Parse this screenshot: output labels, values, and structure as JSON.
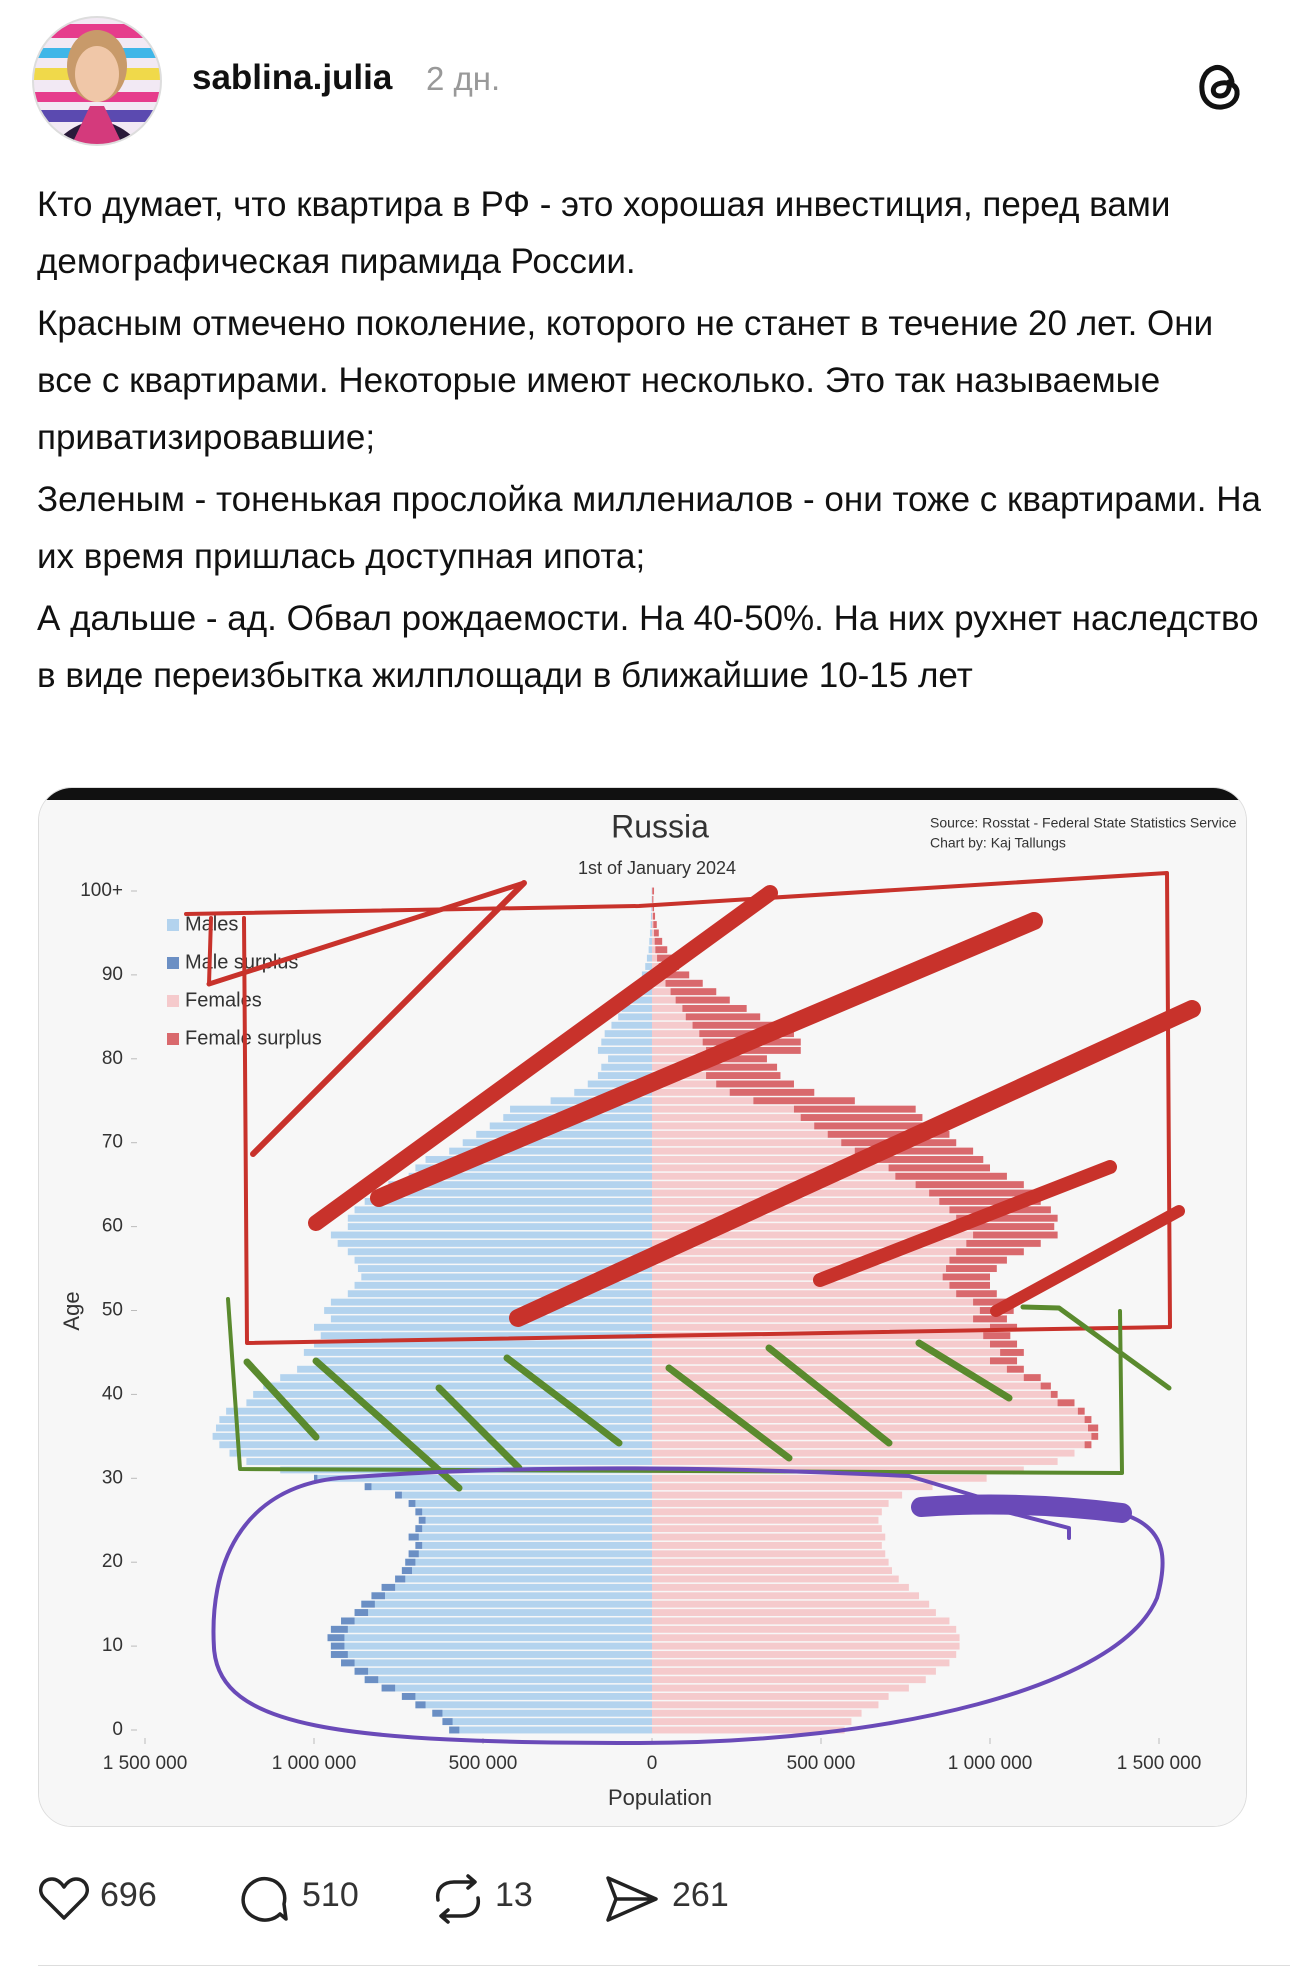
{
  "post": {
    "author": "sablina.julia",
    "time": "2 дн.",
    "paragraphs": [
      "Кто думает, что квартира в РФ - это хорошая инвестиция, перед вами демографическая пирамида России.",
      "Красным отмечено поколение, которого не станет в течение 20 лет. Они все с квартирами. Некоторые имеют несколько. Это так называемые приватизировавшие;",
      "Зеленым - тоненькая прослойка миллениалов - они тоже с квартирами. На их время пришлась доступная ипота;",
      "А дальше - ад. Обвал рождаемости. На 40-50%. На них рухнет наследство в виде переизбытка жилплощади в ближайшие 10-15 лет"
    ],
    "stats": {
      "likes": 696,
      "replies": 510,
      "reposts": 13,
      "shares": 261
    }
  },
  "chart_data": {
    "type": "population-pyramid",
    "title": "Russia",
    "subtitle": "1st of January 2024",
    "source": "Source: Rosstat - Federal State Statistics Service",
    "credit": "Chart by: Kaj Tallungs",
    "x_label": "Population",
    "y_label": "Age",
    "y": [
      0,
      1,
      2,
      3,
      4,
      5,
      6,
      7,
      8,
      9,
      10,
      11,
      12,
      13,
      14,
      15,
      16,
      17,
      18,
      19,
      20,
      21,
      22,
      23,
      24,
      25,
      26,
      27,
      28,
      29,
      30,
      31,
      32,
      33,
      34,
      35,
      36,
      37,
      38,
      39,
      40,
      41,
      42,
      43,
      44,
      45,
      46,
      47,
      48,
      49,
      50,
      51,
      52,
      53,
      54,
      55,
      56,
      57,
      58,
      59,
      60,
      61,
      62,
      63,
      64,
      65,
      66,
      67,
      68,
      69,
      70,
      71,
      72,
      73,
      74,
      75,
      76,
      77,
      78,
      79,
      80,
      81,
      82,
      83,
      84,
      85,
      86,
      87,
      88,
      89,
      90,
      91,
      92,
      93,
      94,
      95,
      96,
      97,
      98,
      99,
      100
    ],
    "series": [
      {
        "name": "Males",
        "color": "#b3d3ee",
        "side": "left",
        "values": [
          600000,
          620000,
          650000,
          700000,
          740000,
          800000,
          850000,
          880000,
          920000,
          950000,
          950000,
          960000,
          950000,
          920000,
          880000,
          860000,
          830000,
          800000,
          760000,
          740000,
          730000,
          720000,
          700000,
          720000,
          700000,
          690000,
          700000,
          720000,
          760000,
          850000,
          1000000,
          1100000,
          1200000,
          1250000,
          1280000,
          1300000,
          1290000,
          1280000,
          1260000,
          1200000,
          1180000,
          1150000,
          1100000,
          1050000,
          1000000,
          1030000,
          1000000,
          980000,
          1000000,
          950000,
          970000,
          950000,
          900000,
          880000,
          860000,
          870000,
          880000,
          900000,
          930000,
          950000,
          900000,
          900000,
          880000,
          850000,
          820000,
          780000,
          720000,
          700000,
          670000,
          600000,
          560000,
          520000,
          480000,
          440000,
          420000,
          300000,
          230000,
          190000,
          160000,
          150000,
          130000,
          160000,
          150000,
          140000,
          120000,
          100000,
          90000,
          70000,
          55000,
          40000,
          30000,
          20000,
          15000,
          10000,
          8000,
          6000,
          4000,
          3000,
          2000,
          1000,
          1000
        ]
      },
      {
        "name": "Females",
        "color": "#f5cacc",
        "side": "right",
        "values": [
          570000,
          590000,
          620000,
          670000,
          700000,
          760000,
          810000,
          840000,
          880000,
          900000,
          910000,
          910000,
          900000,
          880000,
          840000,
          820000,
          790000,
          760000,
          730000,
          710000,
          700000,
          690000,
          680000,
          690000,
          680000,
          670000,
          680000,
          700000,
          740000,
          830000,
          990000,
          1100000,
          1200000,
          1250000,
          1300000,
          1320000,
          1320000,
          1300000,
          1280000,
          1250000,
          1200000,
          1180000,
          1150000,
          1100000,
          1080000,
          1100000,
          1080000,
          1060000,
          1080000,
          1050000,
          1070000,
          1060000,
          1020000,
          1000000,
          1000000,
          1020000,
          1050000,
          1100000,
          1150000,
          1200000,
          1190000,
          1200000,
          1180000,
          1150000,
          1130000,
          1100000,
          1050000,
          1000000,
          980000,
          950000,
          900000,
          880000,
          840000,
          800000,
          780000,
          600000,
          480000,
          420000,
          380000,
          370000,
          340000,
          440000,
          440000,
          420000,
          380000,
          320000,
          280000,
          230000,
          190000,
          150000,
          110000,
          80000,
          60000,
          45000,
          30000,
          20000,
          14000,
          9000,
          6000,
          4000,
          6000
        ]
      }
    ],
    "surplus": [
      {
        "name": "Male surplus",
        "color": "#6b8fc4"
      },
      {
        "name": "Female surplus",
        "color": "#d9696d"
      }
    ],
    "xlim": [
      -1500000,
      1500000
    ],
    "xticks": [
      {
        "value": -1500000,
        "label": "1 500 000"
      },
      {
        "value": -1000000,
        "label": "1 000 000"
      },
      {
        "value": -500000,
        "label": "500 000"
      },
      0,
      {
        "value": 500000,
        "label": "500 000"
      },
      {
        "value": 1000000,
        "label": "1 000 000"
      },
      {
        "value": 1500000,
        "label": "1 500 000"
      }
    ],
    "ylim": [
      0,
      100
    ],
    "yticks": [
      0,
      10,
      20,
      30,
      40,
      50,
      60,
      70,
      80,
      90,
      {
        "value": 100,
        "label": "100+"
      }
    ],
    "grid": false
  }
}
